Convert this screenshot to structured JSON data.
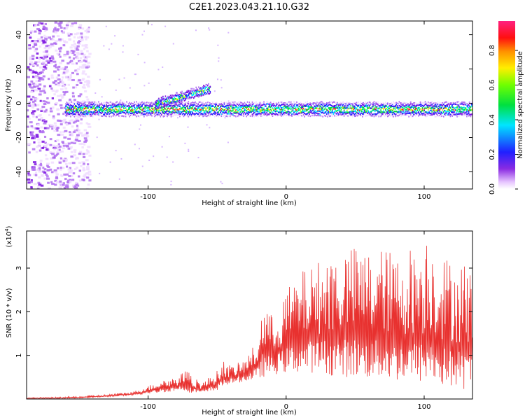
{
  "title": "C2E1.2023.043.21.10.G32",
  "colors": {
    "snr_line": "#e8312f",
    "axis": "#000000"
  },
  "chart_data": [
    {
      "type": "heatmap",
      "xlabel": "Height of straight line (km)",
      "ylabel": "Frequency (Hz)",
      "xlim": [
        -188,
        135
      ],
      "ylim": [
        -50,
        48
      ],
      "xticks": [
        -100,
        0,
        100
      ],
      "yticks": [
        -40,
        -20,
        0,
        20,
        40
      ],
      "colorbar": {
        "label": "Normalized spectral amplitude",
        "range": [
          0,
          0.97
        ],
        "ticks": [
          0.0,
          0.2,
          0.4,
          0.6,
          0.8
        ],
        "colormap": "rainbow (magenta-purple-blue-cyan-green-yellow-orange-red-pink)"
      },
      "features": {
        "noise_region_x": [
          -188,
          -143
        ],
        "main_band_x": [
          -160,
          135
        ],
        "main_band_frequency_hz": -3,
        "upper_branch_x": [
          -95,
          -55
        ],
        "upper_branch_frequency_hz": [
          0,
          9
        ]
      }
    },
    {
      "type": "line",
      "xlabel": "Height of straight line (km)",
      "ylabel": "SNR (10 * v/v)",
      "yunit_label": "(x10",
      "yunit_exp": "4",
      "yunit_close": ")",
      "xlim": [
        -188,
        135
      ],
      "ylim": [
        0,
        3.85
      ],
      "xticks": [
        -100,
        0,
        100
      ],
      "yticks": [
        1,
        2,
        3
      ],
      "series": [
        {
          "x": [
            -188,
            -170,
            -150,
            -130,
            -110,
            -100,
            -90,
            -80,
            -75,
            -72,
            -70,
            -60,
            -50,
            -45,
            -40,
            -30,
            -20,
            -17,
            -10,
            0,
            10,
            20,
            30,
            40,
            50,
            60,
            70,
            80,
            90,
            100,
            101,
            110,
            120,
            130,
            135
          ],
          "low": [
            0.01,
            0.01,
            0.02,
            0.05,
            0.08,
            0.12,
            0.15,
            0.18,
            0.2,
            0.15,
            0.15,
            0.12,
            0.2,
            0.3,
            0.35,
            0.4,
            0.45,
            0.5,
            0.55,
            0.6,
            0.6,
            0.6,
            0.55,
            0.5,
            0.5,
            0.45,
            0.45,
            0.4,
            0.4,
            0.35,
            0.4,
            0.3,
            0.25,
            0.2,
            0.2
          ],
          "high": [
            0.03,
            0.04,
            0.06,
            0.1,
            0.18,
            0.3,
            0.45,
            0.5,
            0.6,
            0.9,
            0.55,
            0.4,
            0.65,
            0.9,
            0.75,
            0.9,
            1.4,
            2.3,
            1.9,
            2.5,
            2.9,
            3.1,
            3.3,
            3.4,
            3.5,
            3.4,
            3.5,
            3.3,
            3.5,
            3.5,
            3.85,
            3.4,
            3.2,
            3.2,
            3.0
          ]
        }
      ]
    }
  ]
}
